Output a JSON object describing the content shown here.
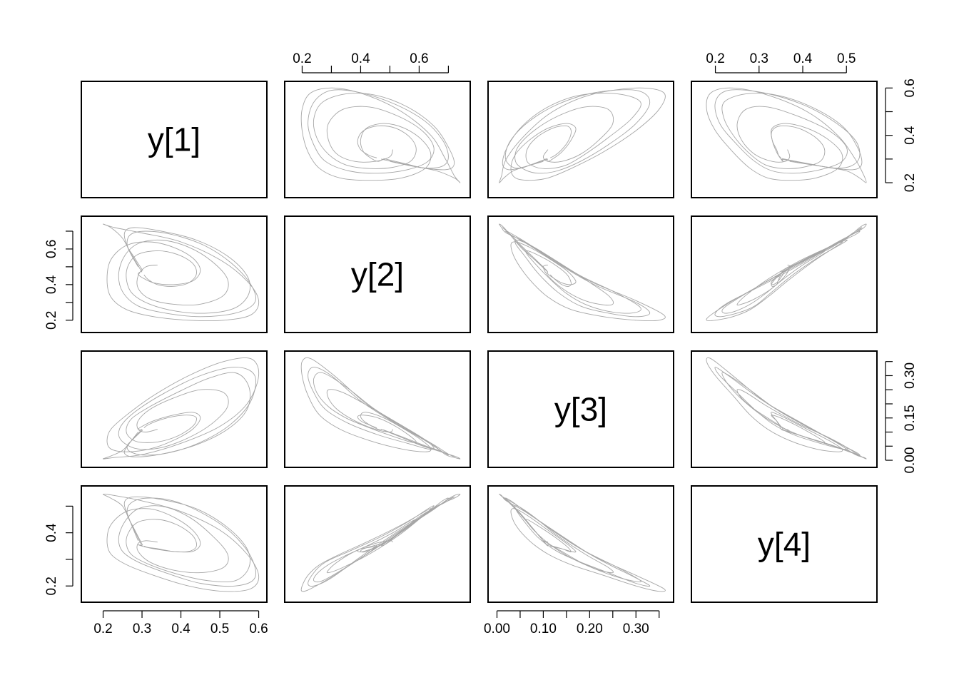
{
  "chart_data": {
    "type": "scatter",
    "subtype": "pairs",
    "variables": [
      "y[1]",
      "y[2]",
      "y[3]",
      "y[4]"
    ],
    "ranges": [
      [
        0.155,
        0.61
      ],
      [
        0.155,
        0.76
      ],
      [
        -0.01,
        0.372
      ],
      [
        0.155,
        0.56
      ]
    ],
    "axes": {
      "top": [
        {
          "col": 1,
          "var": 1,
          "major": [
            0.2,
            0.4,
            0.6
          ],
          "minor": [
            0.3,
            0.5,
            0.7
          ]
        },
        {
          "col": 3,
          "var": 3,
          "major": [
            0.2,
            0.3,
            0.4,
            0.5
          ],
          "minor": []
        }
      ],
      "bottom": [
        {
          "col": 0,
          "var": 0,
          "major": [
            0.2,
            0.3,
            0.4,
            0.5,
            0.6
          ],
          "minor": []
        },
        {
          "col": 2,
          "var": 2,
          "major": [
            0.0,
            0.1,
            0.2,
            0.3
          ],
          "labels": [
            "0.00",
            "0.10",
            "0.20",
            "0.30"
          ],
          "minor": [
            0.05,
            0.15,
            0.25,
            0.35
          ]
        }
      ],
      "left": [
        {
          "row": 1,
          "var": 1,
          "major": [
            0.2,
            0.4,
            0.6
          ],
          "minor": [
            0.3,
            0.5,
            0.7
          ]
        },
        {
          "row": 3,
          "var": 3,
          "major": [
            0.2,
            0.4
          ],
          "minor": [
            0.3,
            0.5
          ]
        }
      ],
      "right": [
        {
          "row": 0,
          "var": 0,
          "major": [
            0.2,
            0.4,
            0.6
          ],
          "minor": [
            0.3,
            0.5
          ]
        },
        {
          "row": 2,
          "var": 2,
          "major": [
            0.0,
            0.15,
            0.3
          ],
          "labels": [
            "0.00",
            "0.15",
            "0.30"
          ],
          "minor": [
            0.05,
            0.1,
            0.2,
            0.25,
            0.35
          ]
        }
      ]
    },
    "series": [
      {
        "points": [
          [
            0.302,
            0.478,
            0.108,
            0.352
          ],
          [
            0.278,
            0.56,
            0.076,
            0.42
          ],
          [
            0.262,
            0.62,
            0.052,
            0.47
          ],
          [
            0.27,
            0.68,
            0.03,
            0.51
          ],
          [
            0.31,
            0.7,
            0.018,
            0.53
          ],
          [
            0.38,
            0.68,
            0.03,
            0.52
          ],
          [
            0.46,
            0.62,
            0.07,
            0.47
          ],
          [
            0.53,
            0.52,
            0.13,
            0.4
          ],
          [
            0.58,
            0.4,
            0.21,
            0.31
          ],
          [
            0.59,
            0.3,
            0.3,
            0.23
          ],
          [
            0.54,
            0.24,
            0.33,
            0.2
          ],
          [
            0.45,
            0.22,
            0.3,
            0.21
          ],
          [
            0.36,
            0.24,
            0.24,
            0.25
          ],
          [
            0.29,
            0.28,
            0.18,
            0.29
          ],
          [
            0.25,
            0.36,
            0.13,
            0.33
          ],
          [
            0.24,
            0.46,
            0.09,
            0.38
          ],
          [
            0.255,
            0.56,
            0.06,
            0.44
          ],
          [
            0.29,
            0.63,
            0.04,
            0.49
          ],
          [
            0.35,
            0.65,
            0.045,
            0.5
          ],
          [
            0.42,
            0.61,
            0.08,
            0.46
          ],
          [
            0.48,
            0.53,
            0.13,
            0.39
          ],
          [
            0.52,
            0.43,
            0.19,
            0.32
          ],
          [
            0.51,
            0.34,
            0.24,
            0.27
          ],
          [
            0.45,
            0.29,
            0.25,
            0.25
          ],
          [
            0.38,
            0.29,
            0.22,
            0.26
          ],
          [
            0.32,
            0.32,
            0.18,
            0.29
          ],
          [
            0.29,
            0.38,
            0.14,
            0.33
          ],
          [
            0.29,
            0.45,
            0.11,
            0.36
          ],
          [
            0.31,
            0.5,
            0.1,
            0.37
          ],
          [
            0.34,
            0.51,
            0.11,
            0.365
          ]
        ]
      },
      {
        "points": [
          [
            0.3,
            0.47,
            0.11,
            0.35
          ],
          [
            0.27,
            0.58,
            0.065,
            0.44
          ],
          [
            0.25,
            0.66,
            0.035,
            0.5
          ],
          [
            0.22,
            0.72,
            0.015,
            0.53
          ],
          [
            0.2,
            0.74,
            0.005,
            0.545
          ],
          [
            0.23,
            0.72,
            0.01,
            0.54
          ],
          [
            0.3,
            0.69,
            0.02,
            0.52
          ],
          [
            0.4,
            0.64,
            0.06,
            0.48
          ],
          [
            0.5,
            0.54,
            0.12,
            0.41
          ],
          [
            0.57,
            0.42,
            0.2,
            0.32
          ],
          [
            0.6,
            0.31,
            0.3,
            0.24
          ],
          [
            0.58,
            0.23,
            0.36,
            0.19
          ],
          [
            0.51,
            0.2,
            0.35,
            0.18
          ],
          [
            0.42,
            0.2,
            0.3,
            0.2
          ],
          [
            0.33,
            0.22,
            0.23,
            0.24
          ],
          [
            0.26,
            0.26,
            0.16,
            0.28
          ],
          [
            0.22,
            0.33,
            0.11,
            0.32
          ],
          [
            0.21,
            0.43,
            0.07,
            0.37
          ],
          [
            0.22,
            0.54,
            0.04,
            0.43
          ],
          [
            0.26,
            0.62,
            0.03,
            0.48
          ],
          [
            0.32,
            0.64,
            0.04,
            0.49
          ],
          [
            0.38,
            0.61,
            0.07,
            0.46
          ],
          [
            0.43,
            0.55,
            0.11,
            0.41
          ],
          [
            0.45,
            0.48,
            0.15,
            0.36
          ],
          [
            0.43,
            0.42,
            0.17,
            0.33
          ],
          [
            0.38,
            0.4,
            0.16,
            0.33
          ],
          [
            0.33,
            0.41,
            0.14,
            0.34
          ],
          [
            0.3,
            0.44,
            0.12,
            0.35
          ],
          [
            0.29,
            0.46,
            0.11,
            0.355
          ],
          [
            0.3,
            0.478,
            0.108,
            0.352
          ]
        ]
      },
      {
        "points": [
          [
            0.29,
            0.5,
            0.1,
            0.37
          ],
          [
            0.265,
            0.6,
            0.055,
            0.46
          ],
          [
            0.255,
            0.69,
            0.025,
            0.515
          ],
          [
            0.28,
            0.72,
            0.012,
            0.535
          ],
          [
            0.35,
            0.7,
            0.022,
            0.525
          ],
          [
            0.44,
            0.65,
            0.055,
            0.49
          ],
          [
            0.52,
            0.56,
            0.11,
            0.42
          ],
          [
            0.57,
            0.45,
            0.18,
            0.34
          ],
          [
            0.575,
            0.35,
            0.26,
            0.27
          ],
          [
            0.54,
            0.27,
            0.31,
            0.22
          ],
          [
            0.47,
            0.24,
            0.29,
            0.22
          ],
          [
            0.39,
            0.25,
            0.24,
            0.245
          ],
          [
            0.32,
            0.29,
            0.19,
            0.28
          ],
          [
            0.275,
            0.35,
            0.15,
            0.315
          ],
          [
            0.26,
            0.43,
            0.115,
            0.355
          ],
          [
            0.265,
            0.51,
            0.085,
            0.4
          ],
          [
            0.29,
            0.57,
            0.065,
            0.44
          ],
          [
            0.34,
            0.59,
            0.065,
            0.45
          ],
          [
            0.39,
            0.57,
            0.085,
            0.43
          ],
          [
            0.43,
            0.52,
            0.12,
            0.39
          ],
          [
            0.44,
            0.46,
            0.15,
            0.35
          ],
          [
            0.42,
            0.41,
            0.16,
            0.33
          ],
          [
            0.38,
            0.39,
            0.155,
            0.33
          ],
          [
            0.34,
            0.4,
            0.14,
            0.34
          ],
          [
            0.315,
            0.43,
            0.125,
            0.345
          ],
          [
            0.305,
            0.455,
            0.115,
            0.35
          ]
        ]
      }
    ]
  }
}
